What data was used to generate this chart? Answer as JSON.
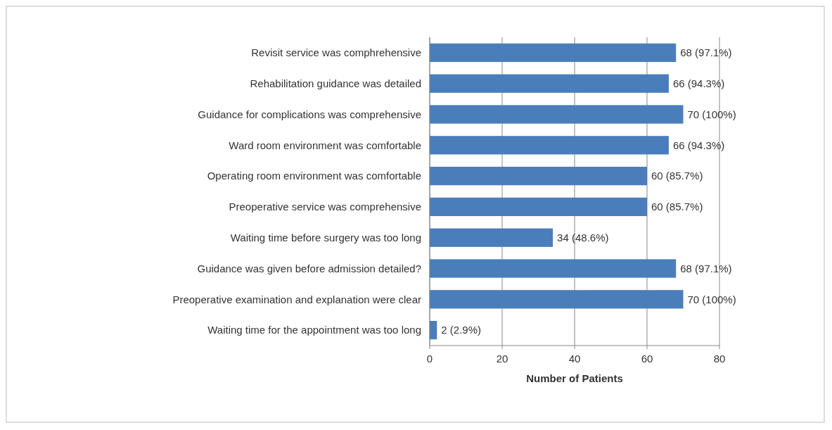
{
  "chart_data": {
    "type": "bar",
    "orientation": "horizontal",
    "xlabel": "Number of Patients",
    "categories": [
      "Revisit service was comphrehensive",
      "Rehabilitation guidance was detailed",
      "Guidance for complications was comprehensive",
      "Ward room environment was comfortable",
      "Operating room environment was comfortable",
      "Preoperative service was comprehensive",
      "Waiting time before surgery was too long",
      "Guidance was given before admission detailed?",
      "Preoperative examination and explanation were clear",
      "Waiting time for the appointment was too long"
    ],
    "values": [
      68,
      66,
      70,
      66,
      60,
      60,
      34,
      68,
      70,
      2
    ],
    "value_labels": [
      "68 (97.1%)",
      "66 (94.3%)",
      "70 (100%)",
      "66 (94.3%)",
      "60 (85.7%)",
      "60 (85.7%)",
      "34 (48.6%)",
      "68 (97.1%)",
      "70 (100%)",
      "2 (2.9%)"
    ],
    "color": "#4a7ebb",
    "xlim": [
      0,
      80
    ],
    "xticks": [
      0,
      20,
      40,
      60,
      80
    ],
    "grid": "x"
  }
}
